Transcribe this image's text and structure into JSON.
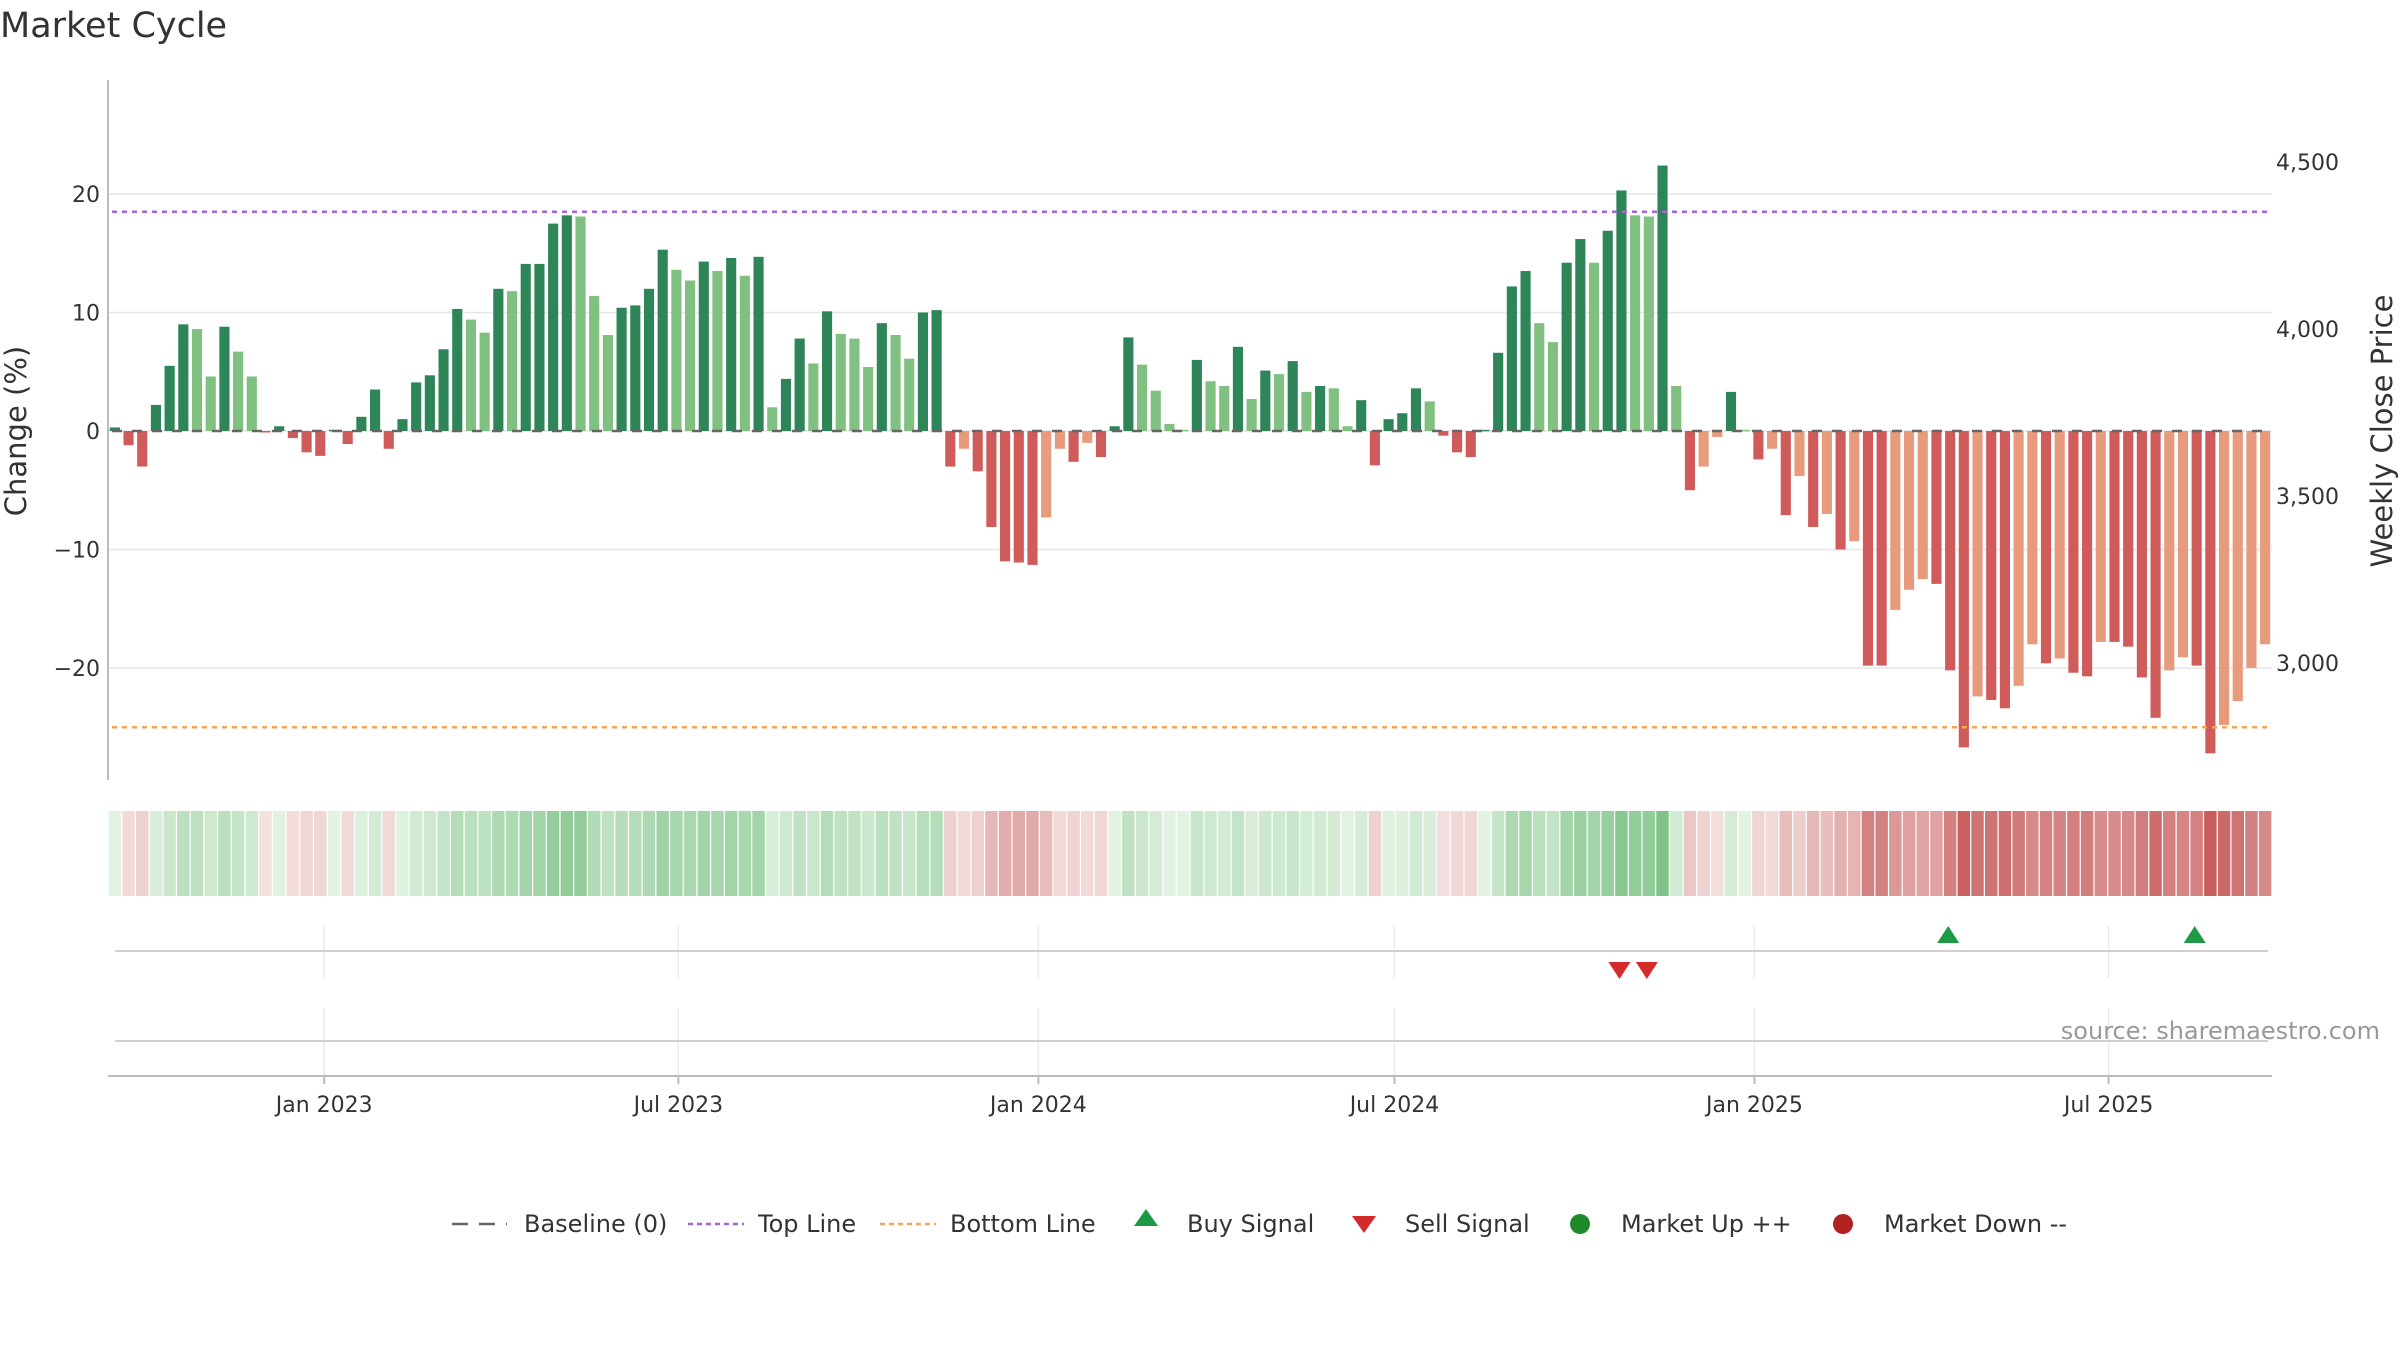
{
  "title": "Market Cycle",
  "source": "source: sharemaestro.com",
  "chart_data": {
    "type": "bar",
    "title": "Market Cycle",
    "ylabel_left": "Change (%)",
    "ylabel_right": "Weekly Close Price",
    "ylim_left": [
      -29.5,
      29.5
    ],
    "y_ticks_left": [
      20,
      10,
      0,
      -10,
      -20
    ],
    "y_tick_labels_left": [
      "20",
      "10",
      "0",
      "−10",
      "−20"
    ],
    "y_ticks_right": [
      4500,
      4000,
      3500,
      3000
    ],
    "y_tick_labels_right": [
      "4,500",
      "4,000",
      "3,500",
      "3,000"
    ],
    "x_ticks": [
      "2023-01-01",
      "2023-07-01",
      "2024-01-01",
      "2024-07-01",
      "2025-01-01",
      "2025-07-01"
    ],
    "x_tick_labels": [
      "Jan 2023",
      "Jul 2023",
      "Jan 2024",
      "Jul 2024",
      "Jan 2025",
      "Jul 2025"
    ],
    "first_week": "2022-09-16",
    "top_line": 18.5,
    "bottom_line": -25,
    "values": [
      0.3,
      -1.2,
      -3.0,
      2.2,
      5.5,
      9.0,
      8.6,
      4.6,
      8.8,
      6.7,
      4.6,
      -0.1,
      0.4,
      -0.6,
      -1.8,
      -2.1,
      0.1,
      -1.1,
      1.2,
      3.5,
      -1.5,
      1.0,
      4.1,
      4.7,
      6.9,
      10.3,
      9.4,
      8.3,
      12.0,
      11.8,
      14.1,
      14.1,
      17.5,
      18.2,
      18.1,
      11.4,
      8.1,
      10.4,
      10.6,
      12.0,
      15.3,
      13.6,
      12.7,
      14.3,
      13.5,
      14.6,
      13.1,
      14.7,
      2.0,
      4.4,
      7.8,
      5.7,
      10.1,
      8.2,
      7.8,
      5.4,
      9.1,
      8.1,
      6.1,
      10.0,
      10.2,
      -3.0,
      -1.5,
      -3.4,
      -8.1,
      -11.0,
      -11.1,
      -11.3,
      -7.3,
      -1.5,
      -2.6,
      -1.0,
      -2.2,
      0.4,
      7.9,
      5.6,
      3.4,
      0.6,
      0.1,
      6.0,
      4.2,
      3.8,
      7.1,
      2.7,
      5.1,
      4.8,
      5.9,
      3.3,
      3.8,
      3.6,
      0.4,
      2.6,
      -2.9,
      1.0,
      1.5,
      3.6,
      2.5,
      -0.4,
      -1.8,
      -2.2,
      0.1,
      6.6,
      12.2,
      13.5,
      9.1,
      7.5,
      14.2,
      16.2,
      14.2,
      16.9,
      20.3,
      18.2,
      18.1,
      22.4,
      3.8,
      -5.0,
      -3.0,
      -0.5,
      3.3,
      0.1,
      -2.4,
      -1.5,
      -7.1,
      -3.8,
      -8.1,
      -7.0,
      -10.0,
      -9.3,
      -19.8,
      -19.8,
      -15.1,
      -13.4,
      -12.5,
      -12.9,
      -20.2,
      -26.7,
      -22.4,
      -22.7,
      -23.4,
      -21.5,
      -18.0,
      -19.6,
      -19.2,
      -20.4,
      -20.7,
      -17.8,
      -17.8,
      -18.2,
      -20.8,
      -24.2,
      -20.2,
      -19.1,
      -19.8,
      -27.2,
      -24.8,
      -22.8,
      -20.0,
      -18.0
    ],
    "markers": [
      {
        "type": "Sell Signal",
        "date": "2024-10-24"
      },
      {
        "type": "Sell Signal",
        "date": "2024-11-07"
      },
      {
        "type": "Buy Signal",
        "date": "2025-04-10"
      },
      {
        "type": "Buy Signal",
        "date": "2025-08-14"
      }
    ],
    "legend": [
      "Baseline (0)",
      "Top Line",
      "Bottom Line",
      "Buy Signal",
      "Sell Signal",
      "Market Up ++",
      "Market Down --"
    ],
    "legend_position": "bottom",
    "grid": true,
    "colors": {
      "up_dark": "#2e8557",
      "up_light": "#80c080",
      "down_dark": "#cf5b5b",
      "down_light": "#e89a7c",
      "top_line": "#a666d6",
      "bottom_line": "#f2a65a",
      "buy": "#1e9a46",
      "sell": "#d42a2a",
      "market_up": "#1e8a2a",
      "market_down": "#b02222",
      "baseline": "#666666",
      "grid": "#e6e6e6"
    }
  }
}
